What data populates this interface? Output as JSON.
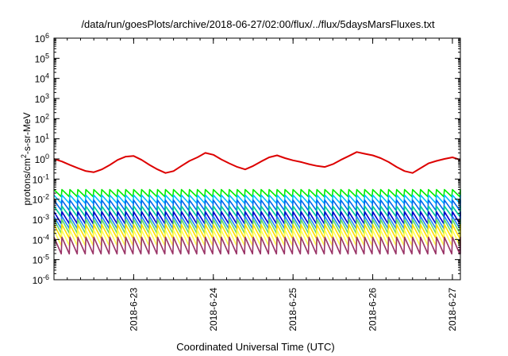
{
  "chart_data": {
    "type": "line",
    "title": "/data/run/goesPlots/archive/2018-06-27/02:00/flux/../flux/5daysMarsFluxes.txt",
    "xlabel": "Coordinated Universal Time (UTC)",
    "ylabel": "protons/cm",
    "ylabel_sup": "2",
    "ylabel_rest": "-s-sr-MeV",
    "x_tick_labels": [
      "2018-6-23",
      "2018-6-24",
      "2018-6-25",
      "2018-6-26",
      "2018-6-27"
    ],
    "x_tick_days": [
      23,
      24,
      25,
      26,
      27
    ],
    "xlim_days": [
      22.0,
      27.1
    ],
    "y_scale": "log",
    "y_tick_base": "10",
    "y_tick_exponents": [
      "-6",
      "-5",
      "-4",
      "-3",
      "-2",
      "-1",
      "0",
      "1",
      "2",
      "3",
      "4",
      "5",
      "6"
    ],
    "ylim": [
      1e-06,
      1000000.0
    ],
    "grid": false,
    "legend": "none",
    "series": [
      {
        "color": "#dd0000",
        "x_days": [
          22.0,
          22.1,
          22.2,
          22.3,
          22.4,
          22.5,
          22.6,
          22.7,
          22.8,
          22.9,
          23.0,
          23.1,
          23.2,
          23.3,
          23.4,
          23.5,
          23.6,
          23.7,
          23.8,
          23.9,
          24.0,
          24.1,
          24.2,
          24.3,
          24.4,
          24.5,
          24.6,
          24.7,
          24.8,
          24.9,
          25.0,
          25.1,
          25.2,
          25.3,
          25.4,
          25.5,
          25.6,
          25.7,
          25.8,
          25.9,
          26.0,
          26.1,
          26.2,
          26.3,
          26.4,
          26.5,
          26.6,
          26.7,
          26.8,
          26.9,
          27.0,
          27.1
        ],
        "values": [
          1.0,
          0.75,
          0.5,
          0.35,
          0.25,
          0.22,
          0.3,
          0.5,
          0.9,
          1.3,
          1.4,
          0.9,
          0.5,
          0.3,
          0.2,
          0.25,
          0.45,
          0.8,
          1.2,
          2.0,
          1.6,
          0.95,
          0.6,
          0.4,
          0.3,
          0.45,
          0.75,
          1.2,
          1.5,
          1.1,
          0.85,
          0.7,
          0.55,
          0.45,
          0.4,
          0.55,
          0.9,
          1.4,
          2.2,
          1.8,
          1.5,
          1.1,
          0.7,
          0.4,
          0.25,
          0.2,
          0.35,
          0.6,
          0.8,
          1.0,
          1.2,
          0.9
        ]
      },
      {
        "color": "#00ee00",
        "base": 0.02,
        "amplitude": 1.5
      },
      {
        "color": "#00bbff",
        "base": 0.01,
        "amplitude": 1.6
      },
      {
        "color": "#0066ee",
        "base": 0.005,
        "amplitude": 1.8
      },
      {
        "color": "#00cc99",
        "base": 0.0025,
        "amplitude": 1.8
      },
      {
        "color": "#0000cc",
        "base": 0.0012,
        "amplitude": 2.0
      },
      {
        "color": "#2288ff",
        "base": 0.0007,
        "amplitude": 2.0
      },
      {
        "color": "#66dd66",
        "base": 0.00045,
        "amplitude": 2.2
      },
      {
        "color": "#ffdd00",
        "base": 0.00025,
        "amplitude": 2.2
      },
      {
        "color": "#ffff55",
        "base": 0.00012,
        "amplitude": 2.4
      },
      {
        "color": "#993366",
        "base": 5e-05,
        "amplitude": 2.6
      }
    ]
  }
}
